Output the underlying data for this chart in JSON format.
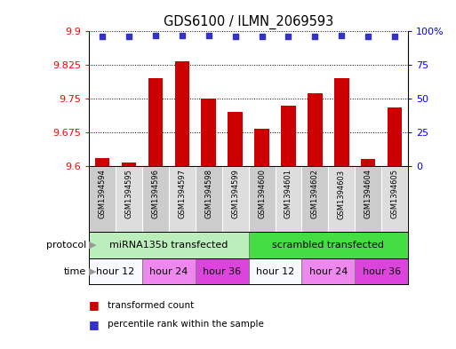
{
  "title": "GDS6100 / ILMN_2069593",
  "samples": [
    "GSM1394594",
    "GSM1394595",
    "GSM1394596",
    "GSM1394597",
    "GSM1394598",
    "GSM1394599",
    "GSM1394600",
    "GSM1394601",
    "GSM1394602",
    "GSM1394603",
    "GSM1394604",
    "GSM1394605"
  ],
  "bar_values": [
    9.618,
    9.608,
    9.795,
    9.833,
    9.75,
    9.72,
    9.683,
    9.735,
    9.762,
    9.795,
    9.615,
    9.73
  ],
  "percentile_values": [
    96,
    96,
    97,
    97,
    97,
    96,
    96,
    96,
    96,
    97,
    96,
    96
  ],
  "y_min": 9.6,
  "y_max": 9.9,
  "y_ticks": [
    9.6,
    9.675,
    9.75,
    9.825,
    9.9
  ],
  "y_right_ticks": [
    0,
    25,
    50,
    75,
    100
  ],
  "bar_color": "#cc0000",
  "dot_color": "#3333cc",
  "protocol_labels": [
    "miRNA135b transfected",
    "scrambled transfected"
  ],
  "protocol_color1": "#bbeebb",
  "protocol_color2": "#44dd44",
  "time_labels": [
    "hour 12",
    "hour 24",
    "hour 36",
    "hour 12",
    "hour 24",
    "hour 36"
  ],
  "time_colors": [
    "#f8f8ff",
    "#ee88ee",
    "#dd44dd",
    "#f8f8ff",
    "#ee88ee",
    "#dd44dd"
  ],
  "sample_bg_color": "#cccccc",
  "sample_bg_color_alt": "#dddddd",
  "legend_bar_label": "transformed count",
  "legend_dot_label": "percentile rank within the sample",
  "bg_color": "#ffffff",
  "left_label_color": "#888888"
}
